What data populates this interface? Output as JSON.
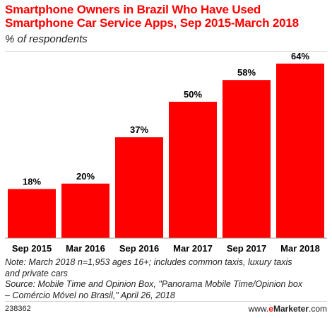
{
  "title": "Smartphone Owners in Brazil Who Have Used Smartphone Car Service Apps, Sep 2015-March 2018",
  "subtitle": "% of respondents",
  "chart_data": {
    "type": "bar",
    "categories": [
      "Sep 2015",
      "Mar 2016",
      "Sep 2016",
      "Mar 2017",
      "Sep 2017",
      "Mar 2018"
    ],
    "values": [
      18,
      20,
      37,
      50,
      58,
      64
    ],
    "value_labels": [
      "18%",
      "20%",
      "37%",
      "50%",
      "58%",
      "64%"
    ],
    "unit": "%",
    "ylim": [
      0,
      64
    ],
    "bar_color": "#ff0000",
    "grid": false,
    "legend": "none"
  },
  "notes": {
    "line1": "Note: March 2018 n=1,953 ages 16+; includes common taxis, luxury taxis",
    "line2": "and private cars",
    "line3": "Source: Mobile Time and Opinion Box, \"Panorama Mobile Time/Opinion box",
    "line4": "– Comércio Móvel no Brasil,\" April 26, 2018"
  },
  "footer": {
    "chart_id": "238362",
    "brand_prefix": "www.",
    "brand_e": "e",
    "brand_name": "Marketer",
    "brand_suffix": ".com"
  }
}
